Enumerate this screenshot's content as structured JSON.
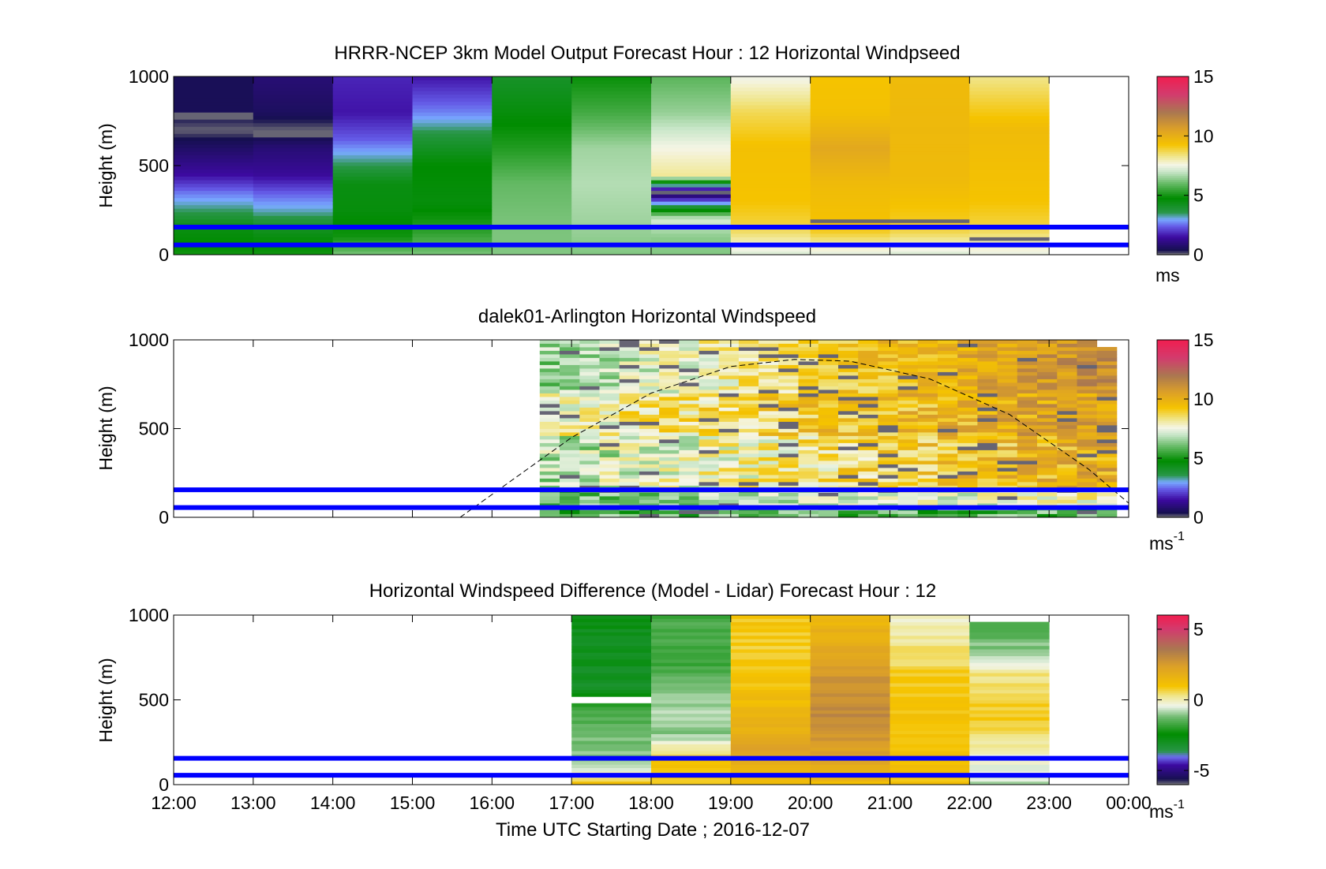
{
  "figure": {
    "xlabel": "Time UTC  Starting Date ; 2016-12-07",
    "x_tick_labels": [
      "12:00",
      "13:00",
      "14:00",
      "15:00",
      "16:00",
      "17:00",
      "18:00",
      "19:00",
      "20:00",
      "21:00",
      "22:00",
      "23:00",
      "00:00"
    ]
  },
  "chart_data": [
    {
      "type": "heatmap",
      "title": "HRRR-NCEP 3km Model Output   Forecast Hour : 12 Horizontal Windpseed",
      "ylabel": "Height (m)",
      "xlim": [
        12,
        24
      ],
      "ylim": [
        0,
        1000
      ],
      "y_ticks": [
        0,
        500,
        1000
      ],
      "colorbar": {
        "ticks": [
          0,
          5,
          10,
          15
        ],
        "range": [
          0,
          15
        ],
        "label": "ms",
        "colormap": "windspeed"
      },
      "reference_lines_m": [
        55,
        155
      ],
      "value_range_ms": [
        0,
        15
      ]
    },
    {
      "type": "heatmap",
      "title": "dalek01-Arlington  Horizontal Windspeed",
      "ylabel": "Height (m)",
      "xlim": [
        12,
        24
      ],
      "ylim": [
        0,
        1000
      ],
      "y_ticks": [
        0,
        500,
        1000
      ],
      "colorbar": {
        "ticks": [
          0,
          5,
          10,
          15
        ],
        "range": [
          0,
          15
        ],
        "label": "ms",
        "label_sup": "-1",
        "colormap": "windspeed"
      },
      "reference_lines_m": [
        55,
        155
      ],
      "boundary_layer_curve": {
        "x": [
          15.6,
          17,
          18,
          19,
          19.8,
          20.5,
          21.5,
          22.5,
          23.5,
          24
        ],
        "y": [
          0,
          450,
          700,
          850,
          890,
          880,
          780,
          580,
          270,
          80
        ]
      },
      "value_range_ms": [
        0,
        15
      ]
    },
    {
      "type": "heatmap",
      "title": "Horizontal Windspeed Difference (Model - Lidar) Forecast Hour : 12",
      "ylabel": "Height (m)",
      "xlim": [
        12,
        24
      ],
      "ylim": [
        0,
        1000
      ],
      "y_ticks": [
        0,
        500,
        1000
      ],
      "colorbar": {
        "ticks": [
          -5,
          0,
          5
        ],
        "range": [
          -6,
          6
        ],
        "label": "ms",
        "label_sup": "-1",
        "colormap": "difference"
      },
      "reference_lines_m": [
        55,
        155
      ],
      "value_range_ms": [
        -6,
        6
      ]
    }
  ],
  "colors": {
    "reference_line": "#0000ff",
    "axis": "#000000"
  }
}
